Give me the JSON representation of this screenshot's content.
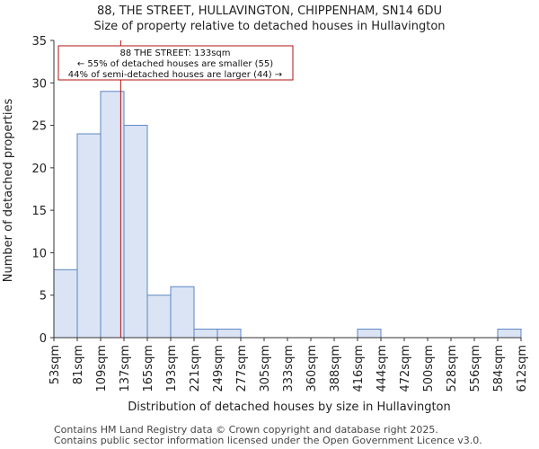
{
  "chart_data": {
    "type": "bar",
    "title": "88, THE STREET, HULLAVINGTON, CHIPPENHAM, SN14 6DU",
    "subtitle": "Size of property relative to detached houses in Hullavington",
    "xlabel": "Distribution of detached houses by size in Hullavington",
    "ylabel": "Number of detached properties",
    "ylim": [
      0,
      35
    ],
    "yticks": [
      0,
      5,
      10,
      15,
      20,
      25,
      30,
      35
    ],
    "bin_edges": [
      "53sqm",
      "81sqm",
      "109sqm",
      "137sqm",
      "165sqm",
      "193sqm",
      "221sqm",
      "249sqm",
      "277sqm",
      "305sqm",
      "333sqm",
      "360sqm",
      "388sqm",
      "416sqm",
      "444sqm",
      "472sqm",
      "500sqm",
      "528sqm",
      "556sqm",
      "584sqm",
      "612sqm"
    ],
    "values": [
      8,
      24,
      29,
      25,
      5,
      6,
      1,
      1,
      0,
      0,
      0,
      0,
      0,
      1,
      0,
      0,
      0,
      0,
      0,
      1
    ],
    "bar_fill": "#dbe4f5",
    "bar_stroke": "#5b86c5",
    "marker": {
      "value_index": 2.86,
      "color": "#b01010",
      "lines": [
        "88 THE STREET: 133sqm",
        "← 55% of detached houses are smaller (55)",
        "44% of semi-detached houses are larger (44) →"
      ]
    }
  },
  "footer": {
    "line1": "Contains HM Land Registry data © Crown copyright and database right 2025.",
    "line2": "Contains public sector information licensed under the Open Government Licence v3.0."
  }
}
